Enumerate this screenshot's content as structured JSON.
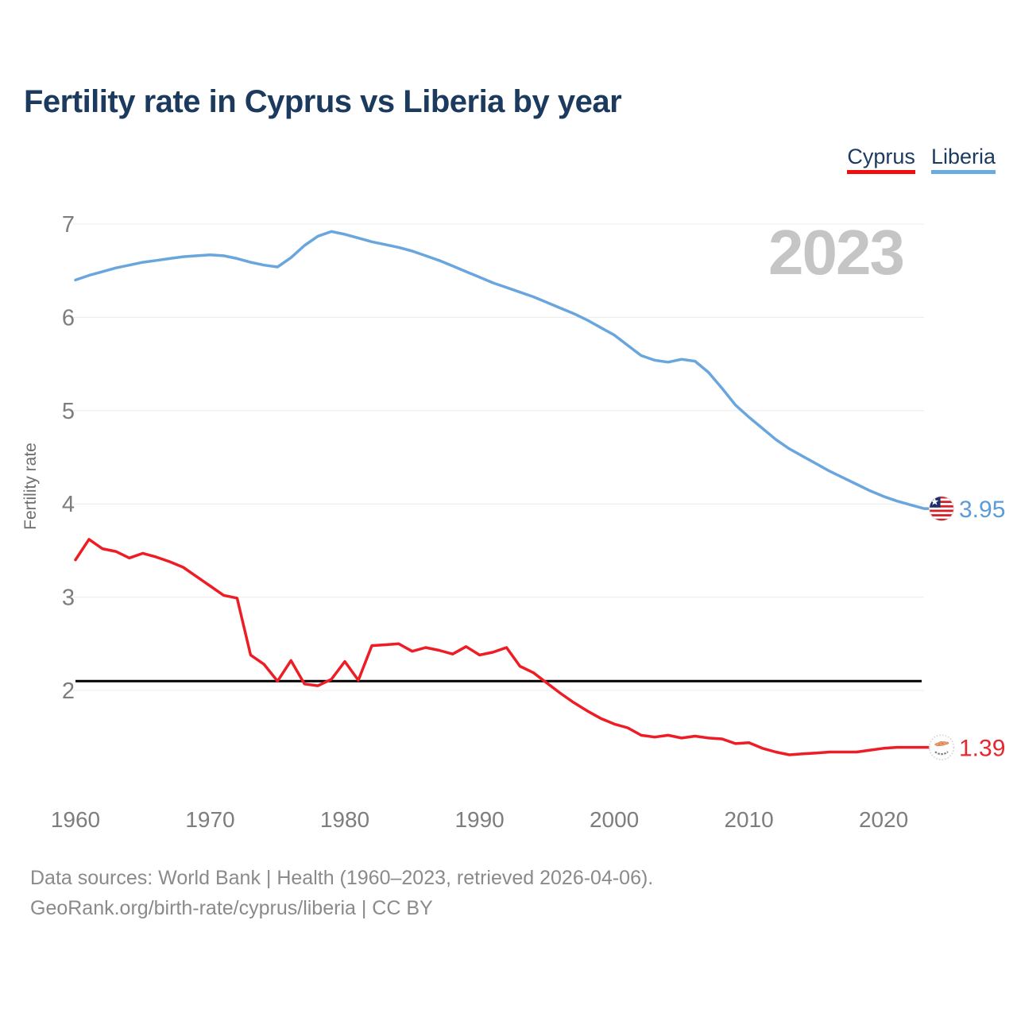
{
  "title": "Fertility rate in Cyprus vs Liberia by year",
  "watermark": "2023",
  "legend": [
    {
      "label": "Cyprus",
      "color": "#f20d0d"
    },
    {
      "label": "Liberia",
      "color": "#6aace0"
    }
  ],
  "y_axis": {
    "label": "Fertility rate",
    "ticks": [
      7,
      6,
      5,
      4,
      3,
      2
    ]
  },
  "x_axis": {
    "ticks": [
      1960,
      1970,
      1980,
      1990,
      2000,
      2010,
      2020
    ]
  },
  "reference_line": {
    "value": 2.1,
    "color": "#000000"
  },
  "endpoint_labels": {
    "liberia": {
      "value": "3.95",
      "color": "#5b9bd8",
      "flag": "liberia-flag"
    },
    "cyprus": {
      "value": "1.39",
      "color": "#e8262e",
      "flag": "cyprus-flag"
    }
  },
  "footer": {
    "line1": "Data sources: World Bank | Health (1960–2023, retrieved 2026-04-06).",
    "line2": "GeoRank.org/birth-rate/cyprus/liberia | CC BY"
  },
  "chart_data": {
    "type": "line",
    "title": "Fertility rate in Cyprus vs Liberia by year",
    "xlabel": "",
    "ylabel": "Fertility rate",
    "x_start": 1960,
    "x_end": 2023,
    "ylim": [
      2,
      7
    ],
    "grid": true,
    "legend_position": "top-right",
    "series": [
      {
        "name": "Cyprus",
        "color": "#ee1d25",
        "values": [
          3.4,
          3.62,
          3.52,
          3.49,
          3.42,
          3.47,
          3.43,
          3.38,
          3.32,
          3.22,
          3.12,
          3.02,
          2.99,
          2.38,
          2.28,
          2.1,
          2.32,
          2.07,
          2.05,
          2.12,
          2.31,
          2.11,
          2.48,
          2.49,
          2.5,
          2.42,
          2.46,
          2.43,
          2.39,
          2.47,
          2.38,
          2.41,
          2.46,
          2.26,
          2.19,
          2.08,
          1.97,
          1.87,
          1.78,
          1.7,
          1.64,
          1.6,
          1.52,
          1.5,
          1.52,
          1.49,
          1.51,
          1.49,
          1.48,
          1.43,
          1.44,
          1.38,
          1.34,
          1.31,
          1.32,
          1.33,
          1.34,
          1.34,
          1.34,
          1.36,
          1.38,
          1.39,
          1.39,
          1.39
        ]
      },
      {
        "name": "Liberia",
        "color": "#6aa6de",
        "values": [
          6.4,
          6.45,
          6.49,
          6.53,
          6.56,
          6.59,
          6.61,
          6.63,
          6.65,
          6.66,
          6.67,
          6.66,
          6.63,
          6.59,
          6.56,
          6.54,
          6.64,
          6.77,
          6.87,
          6.92,
          6.89,
          6.85,
          6.81,
          6.78,
          6.75,
          6.71,
          6.66,
          6.61,
          6.55,
          6.49,
          6.43,
          6.37,
          6.32,
          6.27,
          6.22,
          6.16,
          6.1,
          6.04,
          5.97,
          5.89,
          5.81,
          5.7,
          5.59,
          5.54,
          5.52,
          5.55,
          5.53,
          5.41,
          5.24,
          5.06,
          4.93,
          4.81,
          4.69,
          4.59,
          4.51,
          4.43,
          4.35,
          4.28,
          4.21,
          4.14,
          4.08,
          4.03,
          3.99,
          3.95
        ]
      }
    ]
  }
}
